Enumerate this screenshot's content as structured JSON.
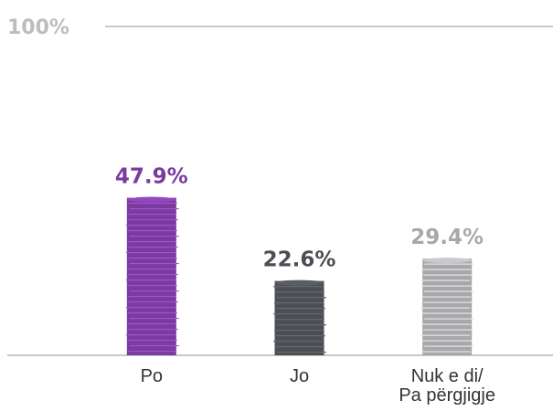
{
  "chart_data": {
    "type": "bar",
    "categories": [
      "Po",
      "Jo",
      "Nuk e di/\nPa përgjigje"
    ],
    "values": [
      47.9,
      22.6,
      29.4
    ],
    "value_labels": [
      "47.9%",
      "22.6%",
      "29.4%"
    ],
    "colors": [
      "#7a3b9e",
      "#4b4e53",
      "#a8a8aa"
    ],
    "ylim": [
      0,
      100
    ],
    "yticks": [
      {
        "value": 100,
        "label": "100%"
      }
    ],
    "grid": true
  }
}
